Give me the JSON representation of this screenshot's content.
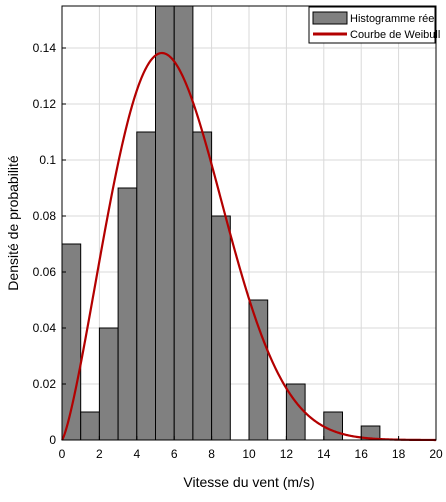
{
  "chart_data": {
    "type": "bar",
    "xlabel": "Vitesse du vent (m/s)",
    "ylabel": "Densité de probabilité",
    "xlim": [
      0,
      20
    ],
    "ylim": [
      0,
      0.155
    ],
    "grid": true,
    "legend_position": "top-right",
    "x_ticks": [
      "0",
      "2",
      "4",
      "6",
      "8",
      "10",
      "12",
      "14",
      "16",
      "18",
      "20"
    ],
    "y_ticks": [
      "0",
      "0.02",
      "0.04",
      "0.06",
      "0.08",
      "0.1",
      "0.12",
      "0.14"
    ],
    "histogram": {
      "name": "Histogramme réel",
      "color": "#808080",
      "bin_width": 1,
      "bins": [
        {
          "x0": 0,
          "value": 0.07
        },
        {
          "x0": 1,
          "value": 0.01
        },
        {
          "x0": 2,
          "value": 0.04
        },
        {
          "x0": 3,
          "value": 0.09
        },
        {
          "x0": 4,
          "value": 0.11
        },
        {
          "x0": 5,
          "value": 0.155
        },
        {
          "x0": 6,
          "value": 0.155
        },
        {
          "x0": 7,
          "value": 0.11
        },
        {
          "x0": 8,
          "value": 0.08
        },
        {
          "x0": 9,
          "value": 0
        },
        {
          "x0": 10,
          "value": 0.05
        },
        {
          "x0": 11,
          "value": 0
        },
        {
          "x0": 12,
          "value": 0.02
        },
        {
          "x0": 13,
          "value": 0
        },
        {
          "x0": 14,
          "value": 0.01
        },
        {
          "x0": 15,
          "value": 0
        },
        {
          "x0": 16,
          "value": 0.005
        },
        {
          "x0": 17,
          "value": 0
        },
        {
          "x0": 18,
          "value": 0
        },
        {
          "x0": 19,
          "value": 0
        }
      ]
    },
    "curve": {
      "name": "Courbe de Weibull",
      "color": "#b30000",
      "shape_k": 2.3,
      "scale_c": 6.85
    }
  }
}
